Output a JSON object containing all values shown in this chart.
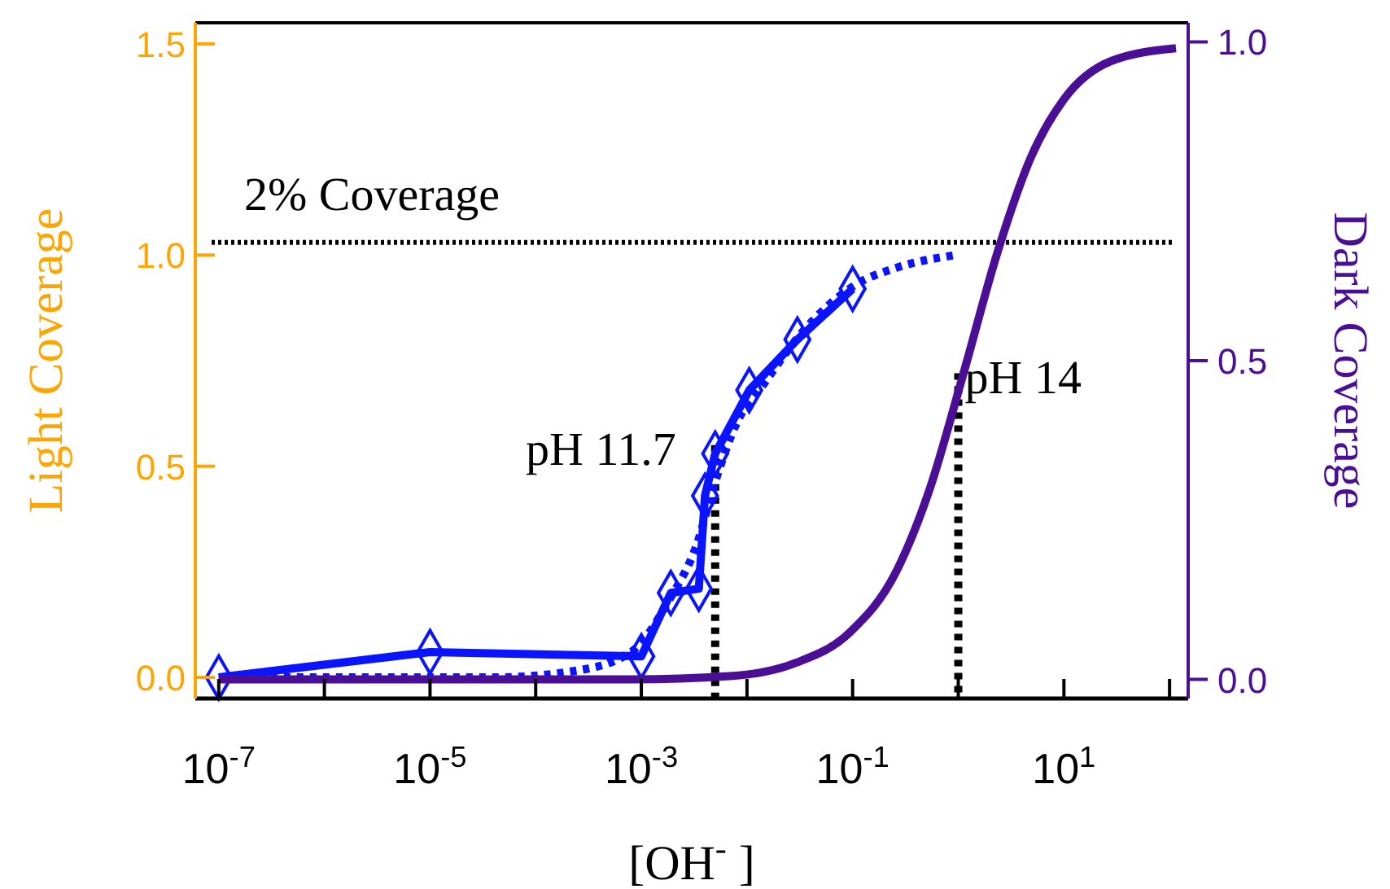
{
  "chart_data": {
    "type": "line",
    "xlabel": "[OH$^{-}$ ]",
    "ylabel": "Light Coverage",
    "y2label": "Dark Coverage",
    "log": "x",
    "grid": false,
    "xlim": [
      6e-08,
      150
    ],
    "xticks": [
      {
        "value": 1e-07,
        "label": "10$^{-7}$"
      },
      {
        "value": 1e-06,
        "label": null
      },
      {
        "value": 1e-05,
        "label": "10$^{-5}$"
      },
      {
        "value": 0.0001,
        "label": null
      },
      {
        "value": 0.001,
        "label": "10$^{-3}$"
      },
      {
        "value": 0.01,
        "label": null
      },
      {
        "value": 0.1,
        "label": "10$^{-1}$"
      },
      {
        "value": 1,
        "label": null
      },
      {
        "value": 10,
        "label": "10$^{1}$"
      },
      {
        "value": 100,
        "label": null
      }
    ],
    "ylim": [
      -0.05,
      1.55
    ],
    "yticks": [
      {
        "value": 0,
        "label": "0.0"
      },
      {
        "value": 0.5,
        "label": "0.5"
      },
      {
        "value": 1,
        "label": "1.0"
      },
      {
        "value": 1.5,
        "label": "1.5"
      }
    ],
    "y2lim": [
      -0.03,
      1.03
    ],
    "y2ticks": [
      {
        "value": 0,
        "label": "0.0"
      },
      {
        "value": 0.5,
        "label": "0.5"
      },
      {
        "value": 1,
        "label": "1.0"
      }
    ],
    "series": [
      {
        "color": "#0a14ff",
        "marker": "diamond",
        "line_style": "solid",
        "x": [
          1e-07,
          1e-05,
          0.001,
          0.0019,
          0.0035,
          0.004,
          0.005,
          0.0105,
          0.03,
          0.1
        ],
        "values": [
          0,
          0.06,
          0.05,
          0.2,
          0.21,
          0.43,
          0.53,
          0.68,
          0.8,
          0.92
        ]
      },
      {
        "color": "#0a14ff",
        "marker": "none",
        "line_style": "dotted",
        "x": [
          1e-07,
          4e-05,
          0.00023,
          0.0008,
          0.0019,
          0.0033,
          0.0051,
          0.0079,
          0.014,
          0.034,
          0.107,
          0.26,
          0.95
        ],
        "values": [
          0,
          0,
          0.015,
          0.06,
          0.19,
          0.31,
          0.47,
          0.6,
          0.69,
          0.82,
          0.93,
          0.97,
          1.0
        ]
      },
      {
        "color": "#4b0f96",
        "marker": "none",
        "line_style": "solid",
        "axis": "y2",
        "x": [
          1e-07,
          0.0008,
          0.0068,
          0.029,
          0.093,
          0.26,
          0.54,
          1.12,
          2.35,
          4.9,
          10,
          28,
          115
        ],
        "values": [
          0,
          0,
          0.005,
          0.026,
          0.073,
          0.17,
          0.3,
          0.48,
          0.67,
          0.82,
          0.91,
          0.97,
          0.99
        ]
      }
    ],
    "ref_lines": [
      {
        "axis": "y",
        "value": 1.03,
        "label": "2% Coverage",
        "line_style": "dotted",
        "color": "#000000"
      }
    ],
    "annotations": [
      {
        "text": "pH 11.7",
        "x": 0.005,
        "y": 0.55
      },
      {
        "text": "pH 14",
        "x": 1,
        "y": 0.72
      }
    ]
  }
}
